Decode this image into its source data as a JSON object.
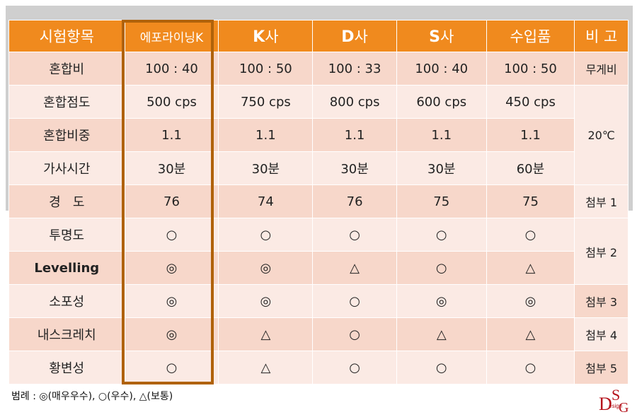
{
  "header": [
    "시험항목",
    "에포라이닝K",
    "K사",
    "D사",
    "S사",
    "수입품",
    "비 고"
  ],
  "header_brand": [
    null,
    null,
    {
      "bold": "K",
      "rest": "사"
    },
    {
      "bold": "D",
      "rest": "사"
    },
    {
      "bold": "S",
      "rest": "사"
    },
    null,
    null
  ],
  "rows": [
    {
      "label": "혼합비",
      "values": [
        "100 : 40",
        "100 : 50",
        "100 : 33",
        "100 : 40",
        "100 : 50"
      ],
      "note": "무게비"
    },
    {
      "label": "혼합점도",
      "values": [
        "500 cps",
        "750 cps",
        "800 cps",
        "600 cps",
        "450 cps"
      ]
    },
    {
      "label": "혼합비중",
      "values": [
        "1.1",
        "1.1",
        "1.1",
        "1.1",
        "1.1"
      ],
      "note": "20℃"
    },
    {
      "label": "가사시간",
      "values": [
        "30분",
        "30분",
        "30분",
        "30분",
        "60분"
      ]
    },
    {
      "label": "경   도",
      "values": [
        "76",
        "74",
        "76",
        "75",
        "75"
      ],
      "note": "첨부 1"
    },
    {
      "label": "투명도",
      "values": [
        "○",
        "○",
        "○",
        "○",
        "○"
      ],
      "note": "첨부 2"
    },
    {
      "label": "Levelling",
      "values": [
        "◎",
        "◎",
        "△",
        "○",
        "△"
      ]
    },
    {
      "label": "소포성",
      "values": [
        "◎",
        "◎",
        "○",
        "◎",
        "◎"
      ],
      "note": "첨부 3"
    },
    {
      "label": "내스크레치",
      "values": [
        "◎",
        "△",
        "○",
        "△",
        "△"
      ],
      "note": "첨부 4"
    },
    {
      "label": "황변성",
      "values": [
        "○",
        "△",
        "○",
        "○",
        "○"
      ],
      "note": "첨부 5"
    }
  ],
  "legend": "범례 : ◎(매우우수), ○(우수), △(보통)",
  "logo": {
    "letters": [
      "D",
      "S",
      "G"
    ],
    "text": "esign"
  },
  "colors": {
    "header": "#f08a1e",
    "row_dark": "#f7d7ca",
    "row_light": "#fbeae4",
    "highlight_border": "#b0620a",
    "logo": "#b5121b"
  }
}
